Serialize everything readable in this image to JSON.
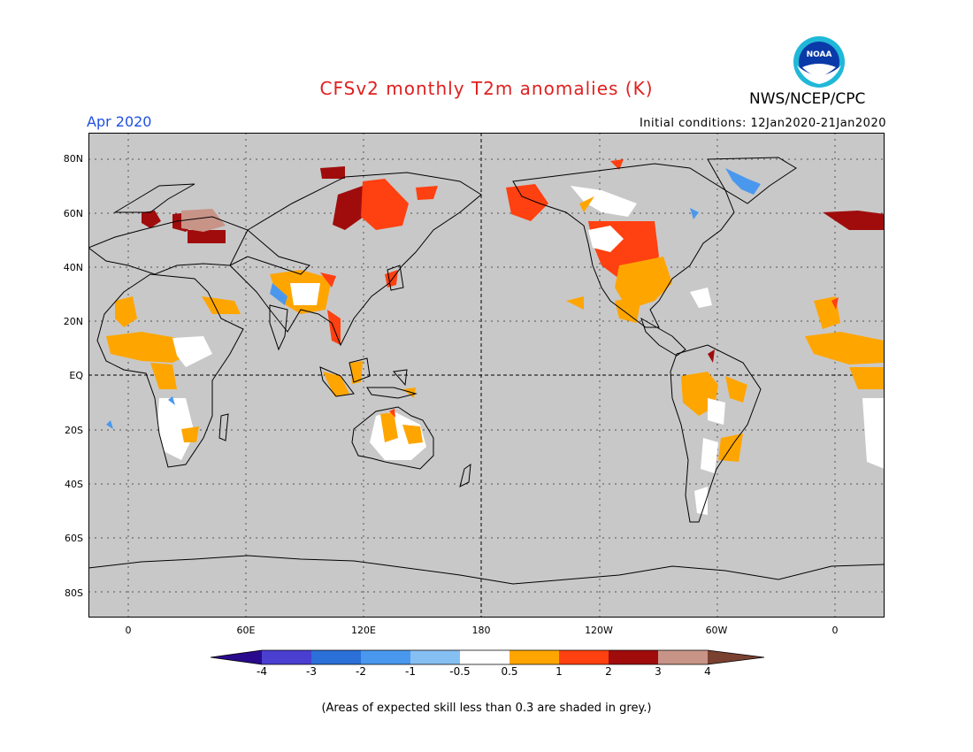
{
  "header": {
    "title": "CFSv2 monthly T2m anomalies (K)",
    "valid_month": "Apr 2020",
    "initial_conditions": "Initial conditions: 12Jan2020-21Jan2020",
    "agency": "NWS/NCEP/CPC",
    "logo_text": "NOAA"
  },
  "map": {
    "lat_labels": [
      "80N",
      "60N",
      "40N",
      "20N",
      "EQ",
      "20S",
      "40S",
      "60S",
      "80S"
    ],
    "lon_labels": [
      "0",
      "60E",
      "120E",
      "180",
      "120W",
      "60W",
      "0"
    ],
    "skill_mask_color": "#c8c8c8",
    "land_outline_color": "#000000"
  },
  "colorbar": {
    "labels": [
      "-4",
      "-3",
      "-2",
      "-1",
      "-0.5",
      "0.5",
      "1",
      "2",
      "3",
      "4"
    ],
    "colors": [
      "#2a0a8c",
      "#4a3fd0",
      "#2a70d8",
      "#4a98ee",
      "#86c0f2",
      "#ffffff",
      "#ffa500",
      "#ff4010",
      "#a00c0c",
      "#c89488",
      "#7a4030"
    ]
  },
  "footnote": "(Areas of expected skill less than 0.3 are shaded in grey.)"
}
